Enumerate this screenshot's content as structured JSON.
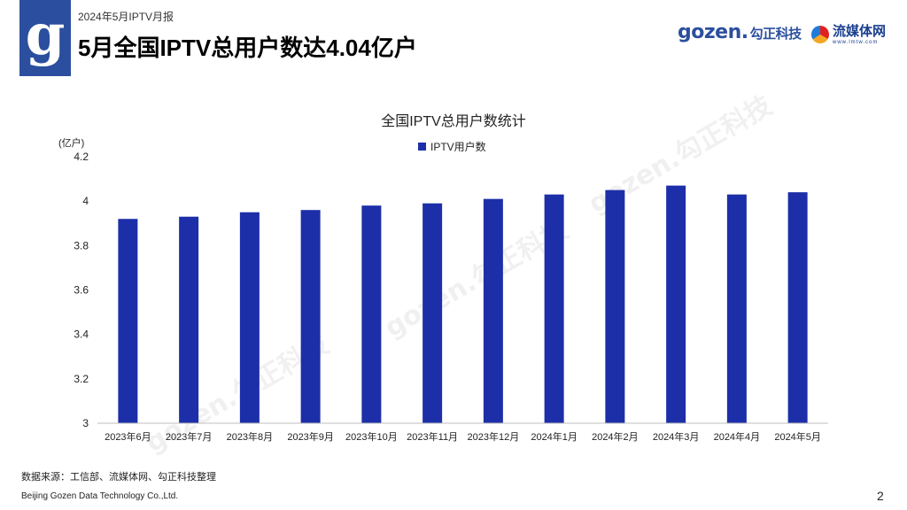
{
  "header": {
    "logo_letter": "g",
    "report_label": "2024年5月IPTV月报",
    "page_title": "5月全国IPTV总用户数达4.04亿户",
    "brand_gozen": "gozen.",
    "brand_gozen_cn": "勾正科技",
    "brand_lmtw_cn": "流媒体网",
    "brand_lmtw_en": "www.lmtw.com"
  },
  "watermark_text": "gozen.勾正科技",
  "chart_data": {
    "type": "bar",
    "title": "全国IPTV总用户数统计",
    "ylabel": "(亿户)",
    "xlabel": "",
    "categories": [
      "2023年6月",
      "2023年7月",
      "2023年8月",
      "2023年9月",
      "2023年10月",
      "2023年11月",
      "2023年12月",
      "2024年1月",
      "2024年2月",
      "2024年3月",
      "2024年4月",
      "2024年5月"
    ],
    "series": [
      {
        "name": "IPTV用户数",
        "values": [
          3.92,
          3.93,
          3.95,
          3.96,
          3.98,
          3.99,
          4.01,
          4.03,
          4.05,
          4.07,
          4.03,
          4.04
        ]
      }
    ],
    "yticks": [
      "3",
      "3.2",
      "3.4",
      "3.6",
      "3.8",
      "4",
      "4.2"
    ],
    "ylim": [
      3,
      4.2
    ],
    "grid": false,
    "legend_position": "top-center",
    "bar_color": "#1c2fa8"
  },
  "footer": {
    "source": "数据来源：工信部、流媒体网、勾正科技整理",
    "company": "Beijing Gozen Data Technology Co.,Ltd.",
    "page_number": "2"
  }
}
